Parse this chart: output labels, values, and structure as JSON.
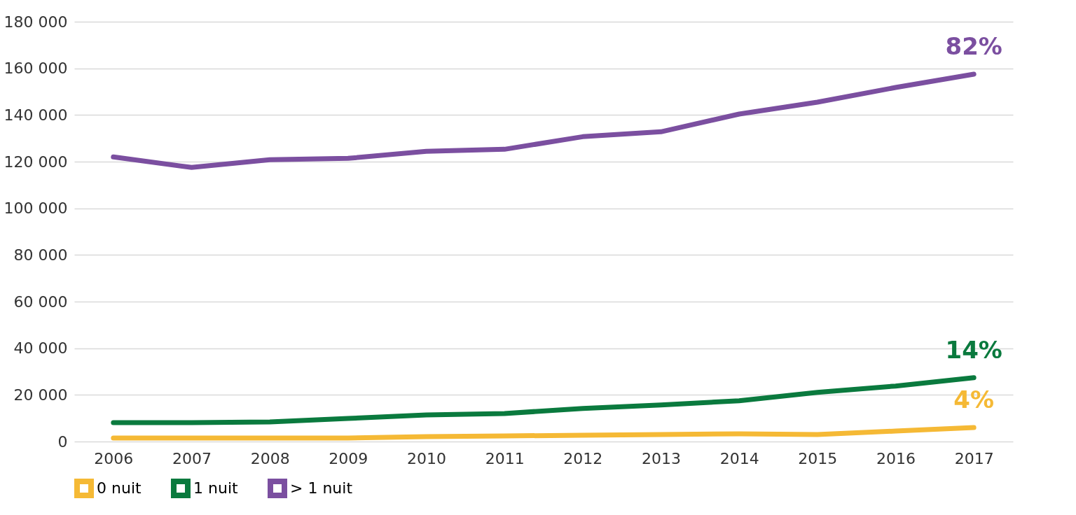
{
  "chart_data": {
    "type": "line",
    "categories": [
      "2006",
      "2007",
      "2008",
      "2009",
      "2010",
      "2011",
      "2012",
      "2013",
      "2014",
      "2015",
      "2016",
      "2017"
    ],
    "series": [
      {
        "name": "0 nuit",
        "color": "#f5b935",
        "values": [
          1500,
          1500,
          1500,
          1500,
          2100,
          2400,
          2700,
          3000,
          3300,
          3000,
          4500,
          6000
        ]
      },
      {
        "name": "1 nuit",
        "color": "#0a7a3e",
        "values": [
          8100,
          8100,
          8400,
          9900,
          11400,
          12000,
          14200,
          15700,
          17500,
          21100,
          23800,
          27400
        ]
      },
      {
        "name": "> 1 nuit",
        "color": "#7b4fa0",
        "values": [
          122000,
          117500,
          120800,
          121400,
          124400,
          125300,
          130700,
          132800,
          140400,
          145500,
          151800,
          157500
        ]
      }
    ],
    "ylim": [
      0,
      180000
    ],
    "yticks": [
      {
        "value": 0,
        "label": "0"
      },
      {
        "value": 20000,
        "label": "20 000"
      },
      {
        "value": 40000,
        "label": "40 000"
      },
      {
        "value": 60000,
        "label": "60 000"
      },
      {
        "value": 80000,
        "label": "80 000"
      },
      {
        "value": 100000,
        "label": "100 000"
      },
      {
        "value": 120000,
        "label": "120 000"
      },
      {
        "value": 140000,
        "label": "140 000"
      },
      {
        "value": 160000,
        "label": "160 000"
      },
      {
        "value": 180000,
        "label": "180 000"
      }
    ],
    "annotations": [
      {
        "text": "4%",
        "x": "2017",
        "y": 6000
      },
      {
        "text": "14%",
        "x": "2017",
        "y": 27400
      },
      {
        "text": "82%",
        "x": "2017",
        "y": 157500
      }
    ],
    "grid": "y",
    "legend": "bottom",
    "marker": "none",
    "line_style": "solid"
  }
}
